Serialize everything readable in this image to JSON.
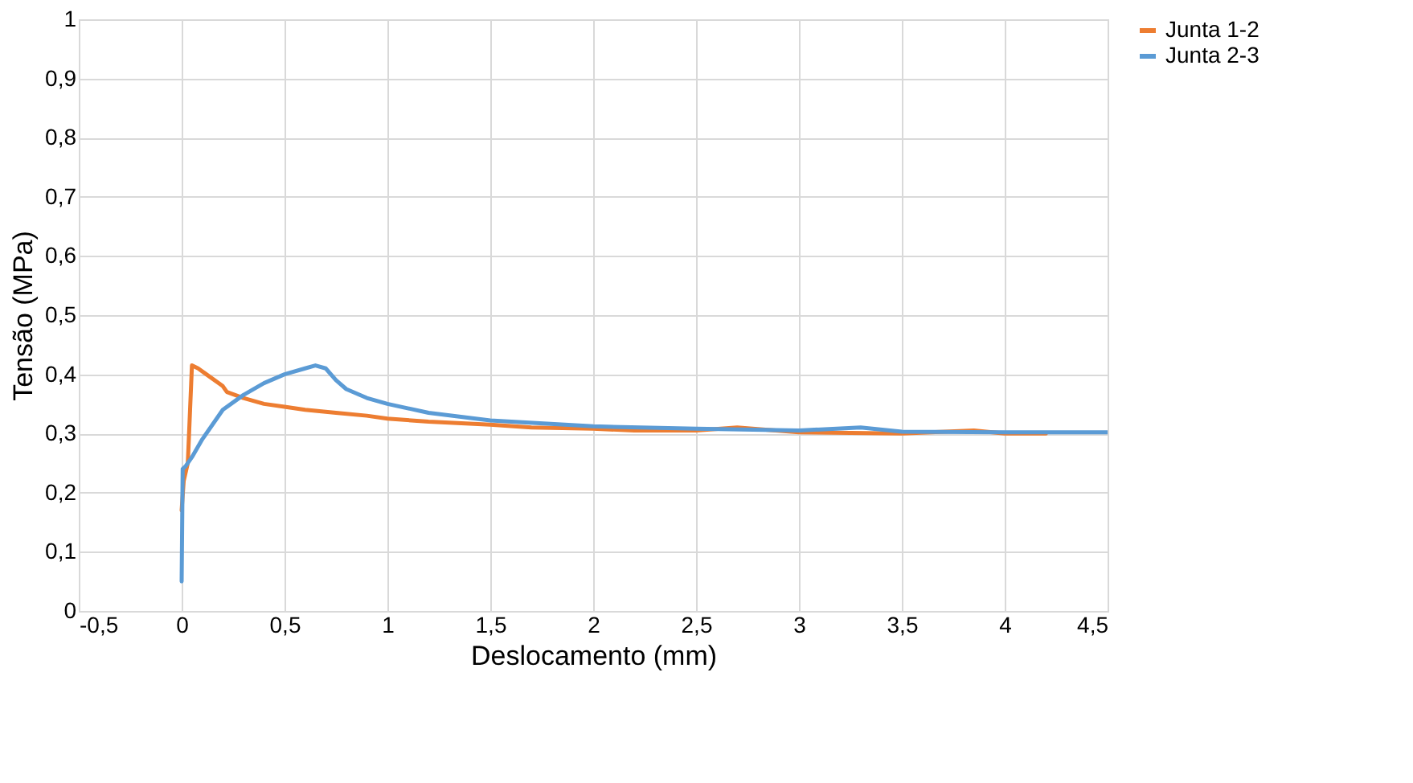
{
  "chart_data": {
    "type": "line",
    "xlabel": "Deslocamento (mm)",
    "ylabel": "Tensão (MPa)",
    "xlim": [
      -0.5,
      4.5
    ],
    "xticks": [
      {
        "value": -0.5,
        "label": "-0,5"
      },
      {
        "value": 0,
        "label": "0"
      },
      {
        "value": 0.5,
        "label": "0,5"
      },
      {
        "value": 1,
        "label": "1"
      },
      {
        "value": 1.5,
        "label": "1,5"
      },
      {
        "value": 2,
        "label": "2"
      },
      {
        "value": 2.5,
        "label": "2,5"
      },
      {
        "value": 3,
        "label": "3"
      },
      {
        "value": 3.5,
        "label": "3,5"
      },
      {
        "value": 4,
        "label": "4"
      },
      {
        "value": 4.5,
        "label": "4,5"
      }
    ],
    "ylim": [
      0,
      1
    ],
    "yticks": [
      {
        "value": 0,
        "label": "0"
      },
      {
        "value": 0.1,
        "label": "0,1"
      },
      {
        "value": 0.2,
        "label": "0,2"
      },
      {
        "value": 0.3,
        "label": "0,3"
      },
      {
        "value": 0.4,
        "label": "0,4"
      },
      {
        "value": 0.5,
        "label": "0,5"
      },
      {
        "value": 0.6,
        "label": "0,6"
      },
      {
        "value": 0.7,
        "label": "0,7"
      },
      {
        "value": 0.8,
        "label": "0,8"
      },
      {
        "value": 0.9,
        "label": "0,9"
      },
      {
        "value": 1,
        "label": "1"
      }
    ],
    "grid": true,
    "legend": "right",
    "marker": "none",
    "line_style": "solid",
    "series": [
      {
        "name": "Junta 1-2",
        "color": "#ed7d31",
        "x": [
          0,
          0.01,
          0.03,
          0.05,
          0.08,
          0.12,
          0.2,
          0.22,
          0.3,
          0.4,
          0.5,
          0.6,
          0.75,
          0.9,
          1,
          1.2,
          1.5,
          1.7,
          2,
          2.2,
          2.5,
          2.7,
          3,
          3.5,
          3.85,
          4,
          4.2
        ],
        "values": [
          0.17,
          0.22,
          0.25,
          0.415,
          0.41,
          0.4,
          0.38,
          0.37,
          0.36,
          0.35,
          0.345,
          0.34,
          0.335,
          0.33,
          0.325,
          0.32,
          0.315,
          0.31,
          0.308,
          0.305,
          0.305,
          0.31,
          0.302,
          0.3,
          0.305,
          0.3,
          0.3
        ]
      },
      {
        "name": "Junta 2-3",
        "color": "#5b9bd5",
        "x": [
          0,
          0.005,
          0.02,
          0.05,
          0.1,
          0.2,
          0.3,
          0.4,
          0.5,
          0.6,
          0.65,
          0.7,
          0.75,
          0.8,
          0.9,
          1,
          1.2,
          1.5,
          2,
          2.5,
          3,
          3.3,
          3.5,
          4,
          4.5
        ],
        "values": [
          0.05,
          0.24,
          0.245,
          0.26,
          0.29,
          0.34,
          0.365,
          0.385,
          0.4,
          0.41,
          0.415,
          0.41,
          0.39,
          0.375,
          0.36,
          0.35,
          0.335,
          0.322,
          0.312,
          0.308,
          0.305,
          0.31,
          0.303,
          0.302,
          0.302
        ]
      }
    ]
  }
}
